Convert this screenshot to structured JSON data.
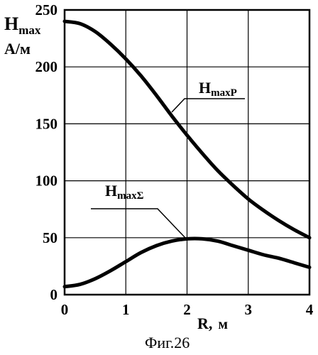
{
  "chart_data": {
    "type": "line",
    "xlabel": {
      "main": "R,",
      "unit": "м"
    },
    "ylabel": {
      "main": "H",
      "sub": "max",
      "unit": "А/м"
    },
    "xlim": [
      0,
      4
    ],
    "ylim": [
      0,
      250
    ],
    "x_ticks": [
      "0",
      "1",
      "2",
      "3",
      "4"
    ],
    "y_ticks": [
      "0",
      "50",
      "100",
      "150",
      "200",
      "250"
    ],
    "grid": true,
    "series": [
      {
        "name": "H",
        "name_sub": "maxP",
        "x": [
          0,
          0.25,
          0.5,
          0.75,
          1.0,
          1.25,
          1.5,
          1.75,
          2.0,
          2.25,
          2.5,
          2.75,
          3.0,
          3.25,
          3.5,
          3.75,
          4.0
        ],
        "y": [
          240,
          238,
          231,
          220,
          207,
          192,
          175,
          157,
          140,
          124,
          109,
          96,
          84,
          74,
          65,
          57,
          50
        ]
      },
      {
        "name": "H",
        "name_sub": "maxΣ",
        "x": [
          0,
          0.25,
          0.5,
          0.75,
          1.0,
          1.25,
          1.5,
          1.75,
          2.0,
          2.25,
          2.5,
          2.75,
          3.0,
          3.25,
          3.5,
          3.75,
          4.0
        ],
        "y": [
          7,
          9,
          14,
          21,
          29,
          37,
          43,
          47,
          49,
          49,
          47,
          43,
          39,
          35,
          32,
          28,
          24
        ]
      }
    ]
  },
  "caption": "Фиг.26"
}
